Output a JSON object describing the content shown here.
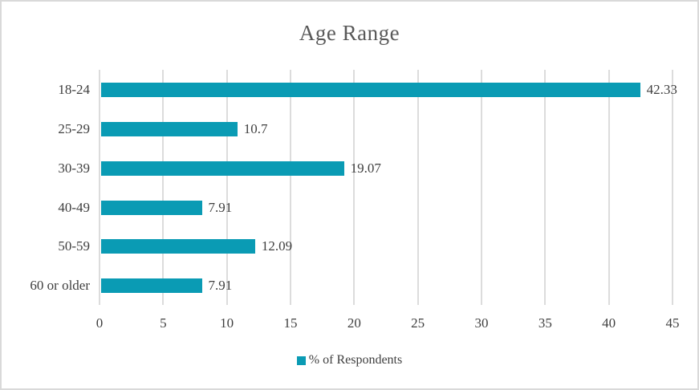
{
  "window": {
    "background": "#ffffff",
    "border_color": "#d9d9d9"
  },
  "chart_data": {
    "type": "bar",
    "orientation": "horizontal",
    "title": "Age Range",
    "categories": [
      "18-24",
      "25-29",
      "30-39",
      "40-49",
      "50-59",
      "60 or older"
    ],
    "values": [
      42.33,
      10.7,
      19.07,
      7.91,
      12.09,
      7.91
    ],
    "value_labels": [
      "42.33",
      "10.7",
      "19.07",
      "7.91",
      "12.09",
      "7.91"
    ],
    "xlabel": "",
    "ylabel": "",
    "xlim": [
      0,
      45
    ],
    "x_ticks": [
      0,
      5,
      10,
      15,
      20,
      25,
      30,
      35,
      40,
      45
    ],
    "grid": "vertical",
    "gridline_color": "#dcdcdc",
    "bar_color": "#0a9bb4",
    "title_color": "#595959",
    "label_color": "#3f3f3f",
    "legend": {
      "position": "bottom",
      "entries": [
        {
          "label": "% of Respondents",
          "color": "#0a9bb4"
        }
      ]
    }
  }
}
